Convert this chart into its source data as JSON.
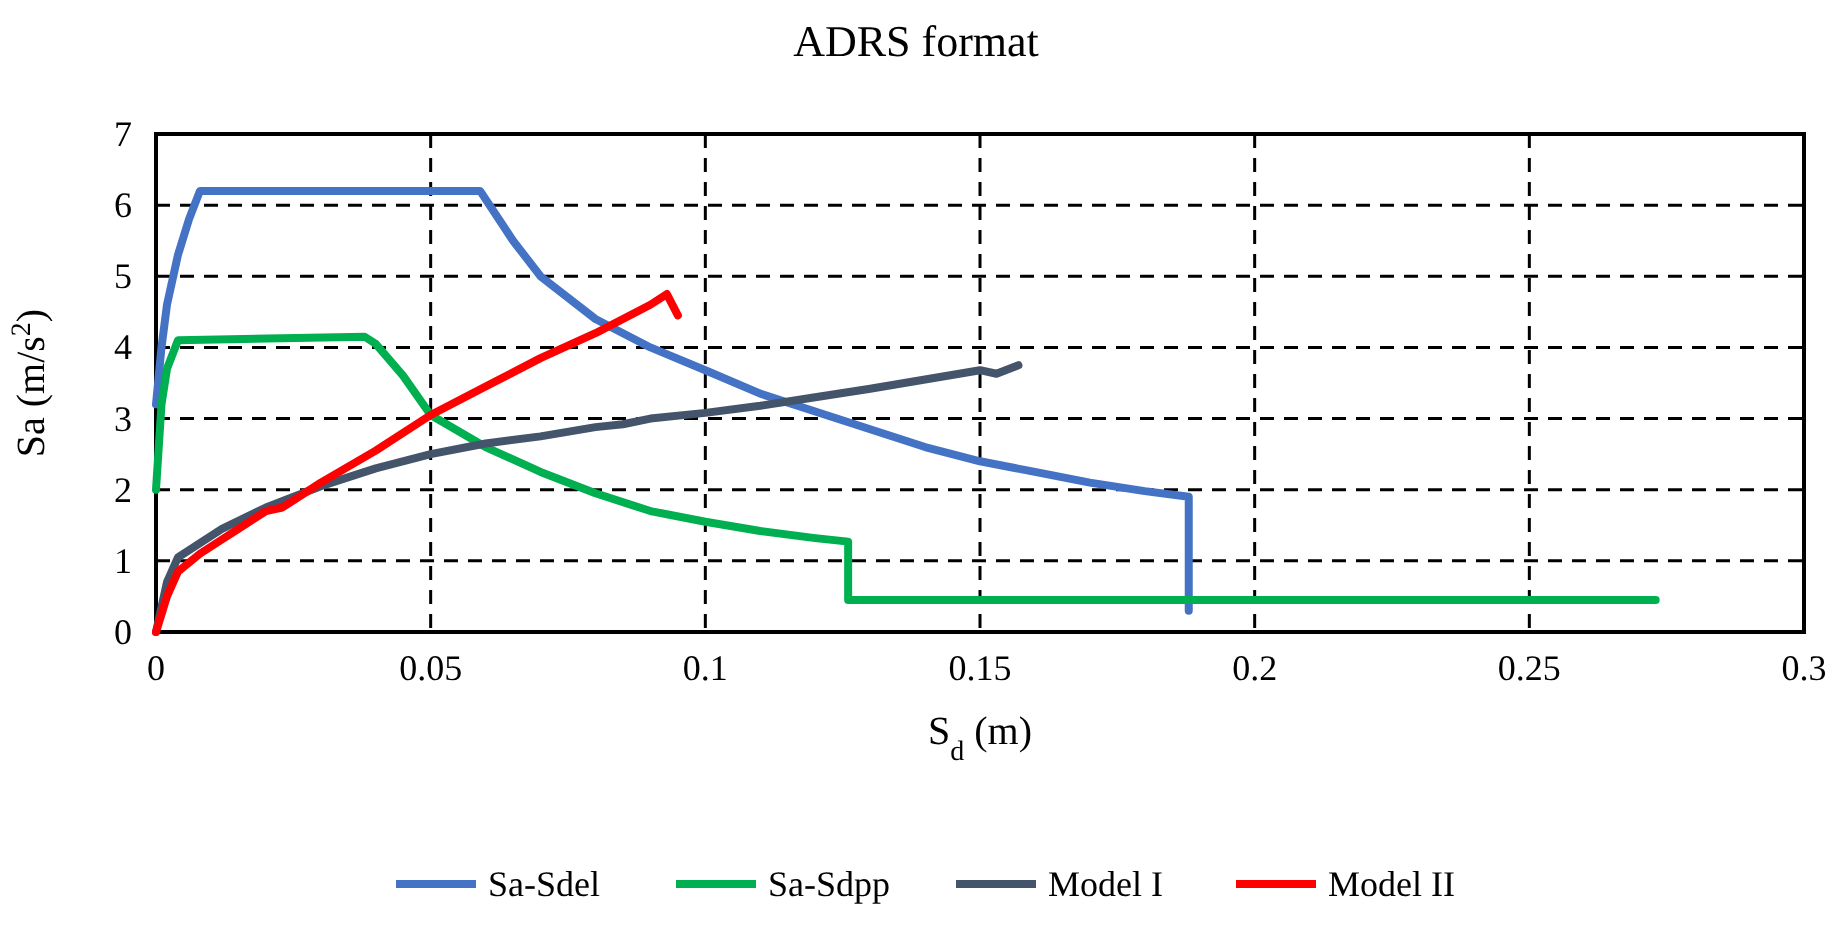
{
  "chart_data": {
    "type": "line",
    "title": "ADRS format",
    "xlabel": "S$_{d}$ (m)",
    "ylabel": "Sa (m/s$^{2}$)",
    "xlim": [
      0,
      0.3
    ],
    "xticks": [
      0,
      0.05,
      0.1,
      0.15,
      0.2,
      0.25,
      0.3
    ],
    "ylim": [
      0,
      7
    ],
    "yticks": [
      0,
      1,
      2,
      3,
      4,
      5,
      6,
      7
    ],
    "grid": true,
    "legend": "bottom",
    "marker": "none",
    "line_style": "solid",
    "series": [
      {
        "name": "Sa-Sdel",
        "color": "#4472c4",
        "x": [
          0,
          0.001,
          0.002,
          0.004,
          0.006,
          0.008,
          0.059,
          0.065,
          0.07,
          0.08,
          0.09,
          0.1,
          0.11,
          0.12,
          0.13,
          0.14,
          0.15,
          0.16,
          0.17,
          0.18,
          0.188,
          0.188
        ],
        "values": [
          3.2,
          4.0,
          4.6,
          5.3,
          5.8,
          6.2,
          6.2,
          5.5,
          5.0,
          4.4,
          4.0,
          3.68,
          3.35,
          3.1,
          2.85,
          2.6,
          2.4,
          2.25,
          2.1,
          1.98,
          1.9,
          0.3
        ]
      },
      {
        "name": "Sa-Sdpp",
        "color": "#00b050",
        "x": [
          0,
          0.001,
          0.002,
          0.004,
          0.038,
          0.04,
          0.045,
          0.05,
          0.06,
          0.07,
          0.08,
          0.09,
          0.1,
          0.11,
          0.12,
          0.126,
          0.126,
          0.273
        ],
        "values": [
          2.0,
          3.2,
          3.7,
          4.1,
          4.15,
          4.05,
          3.6,
          3.05,
          2.6,
          2.25,
          1.95,
          1.7,
          1.55,
          1.42,
          1.32,
          1.27,
          0.45,
          0.45
        ]
      },
      {
        "name": "Model I",
        "color": "#44546a",
        "x": [
          0,
          0.002,
          0.004,
          0.008,
          0.012,
          0.02,
          0.03,
          0.04,
          0.05,
          0.06,
          0.07,
          0.08,
          0.085,
          0.09,
          0.1,
          0.11,
          0.12,
          0.13,
          0.14,
          0.15,
          0.153,
          0.157
        ],
        "values": [
          0,
          0.7,
          1.05,
          1.25,
          1.45,
          1.75,
          2.05,
          2.3,
          2.5,
          2.65,
          2.75,
          2.88,
          2.92,
          3.0,
          3.08,
          3.18,
          3.3,
          3.42,
          3.55,
          3.68,
          3.63,
          3.75
        ]
      },
      {
        "name": "Model II",
        "color": "#ff0000",
        "x": [
          0,
          0.002,
          0.004,
          0.008,
          0.012,
          0.015,
          0.02,
          0.023,
          0.03,
          0.04,
          0.05,
          0.06,
          0.07,
          0.08,
          0.09,
          0.093,
          0.095
        ],
        "values": [
          0,
          0.5,
          0.85,
          1.1,
          1.3,
          1.45,
          1.7,
          1.75,
          2.1,
          2.55,
          3.05,
          3.45,
          3.85,
          4.2,
          4.6,
          4.75,
          4.45
        ]
      }
    ]
  }
}
